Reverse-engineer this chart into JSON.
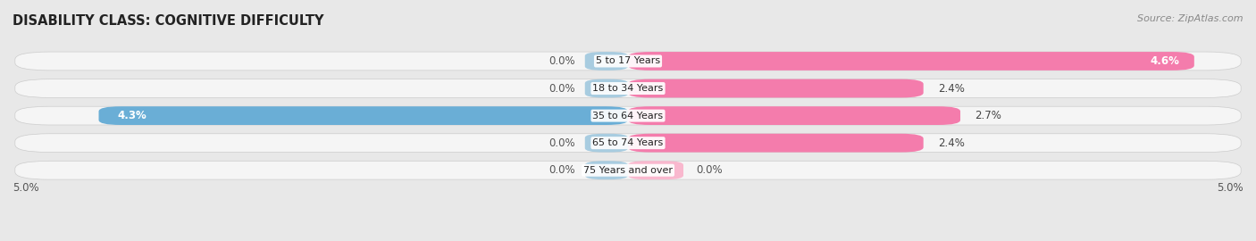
{
  "title": "DISABILITY CLASS: COGNITIVE DIFFICULTY",
  "source": "Source: ZipAtlas.com",
  "categories": [
    "5 to 17 Years",
    "18 to 34 Years",
    "35 to 64 Years",
    "65 to 74 Years",
    "75 Years and over"
  ],
  "male_values": [
    0.0,
    0.0,
    4.3,
    0.0,
    0.0
  ],
  "female_values": [
    4.6,
    2.4,
    2.7,
    2.4,
    0.0
  ],
  "female_stub_values": [
    0.0,
    0.0,
    0.0,
    0.0,
    0.5
  ],
  "max_val": 5.0,
  "male_stub_val": 0.35,
  "male_color": "#6aaed6",
  "female_color": "#f47cac",
  "female_stub_color": "#f9b8ce",
  "male_stub_color": "#a8cce0",
  "bg_color": "#e8e8e8",
  "row_bg_color": "#f5f5f5",
  "title_fontsize": 10.5,
  "label_fontsize": 8.5,
  "source_fontsize": 8.0,
  "tick_fontsize": 8.5,
  "cat_fontsize": 8.0
}
